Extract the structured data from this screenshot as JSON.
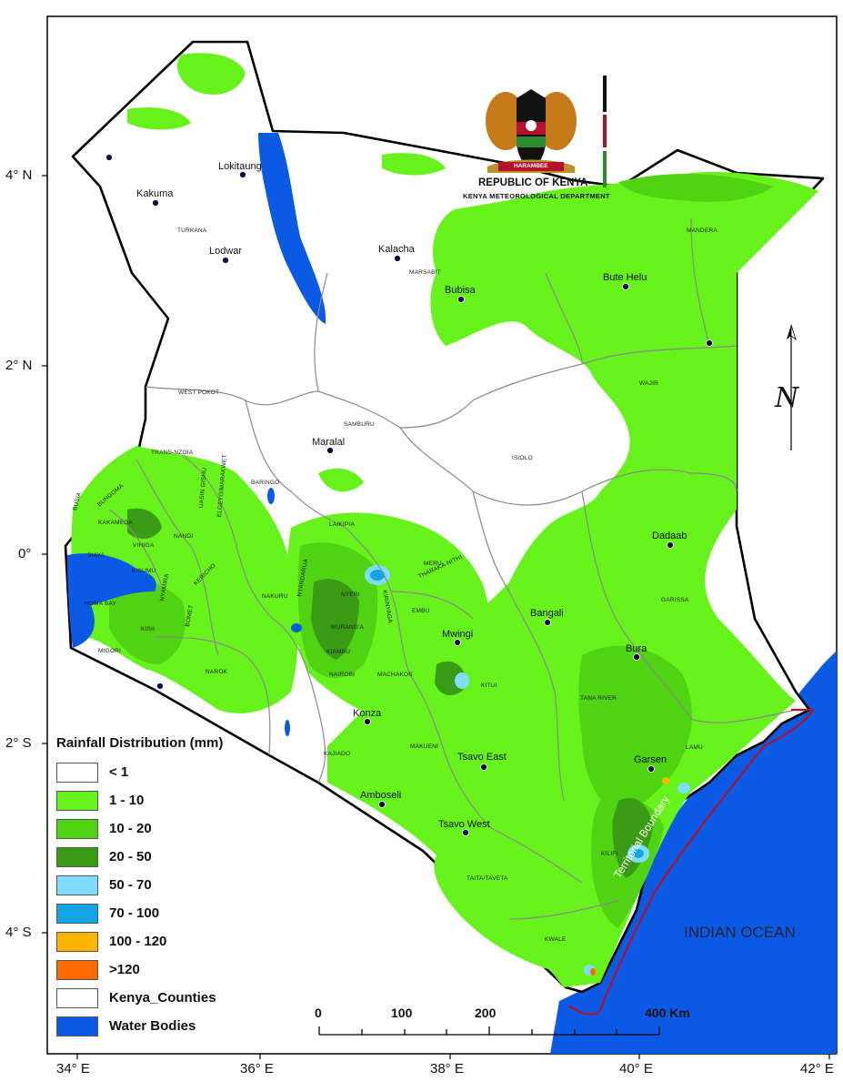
{
  "emblem": {
    "motto": "HARAMBEE",
    "country": "REPUBLIC OF KENYA",
    "department": "KENYA METEOROLOGICAL DEPARTMENT"
  },
  "axes": {
    "lat_labels": [
      "4° N",
      "2° N",
      "0°",
      "2° S",
      "4° S"
    ],
    "lon_labels": [
      "34° E",
      "36° E",
      "38° E",
      "40° E",
      "42° E"
    ]
  },
  "towns": [
    "Lokitaung",
    "Kakuma",
    "Lodwar",
    "Kalacha",
    "Bubisa",
    "Bute Helu",
    "Maralal",
    "Dadaab",
    "Bangali",
    "Mwingi",
    "Bura",
    "Konza",
    "Tsavo East",
    "Garsen",
    "Amboseli",
    "Tsavo West"
  ],
  "counties": [
    "TURKANA",
    "MARSABIT",
    "MANDERA",
    "WAJIR",
    "WEST POKOT",
    "SAMBURU",
    "ISIOLO",
    "TRANS-NZOIA",
    "BUSIA",
    "BUNGOMA",
    "KAKAMEGA",
    "VIHIGA",
    "SIAYA",
    "KISUMU",
    "HOMA BAY",
    "MIGORI",
    "KISII",
    "NYAMIRA",
    "BOMET",
    "KERICHO",
    "NANDI",
    "UASIN GISHU",
    "ELGEYO/MARAKWET",
    "BARINGO",
    "LAIKIPIA",
    "NAKURU",
    "NYANDARUA",
    "NYERI",
    "KIRINYAGA",
    "MURANG'A",
    "KIAMBU",
    "NAIROBI",
    "NAROK",
    "KAJIADO",
    "MACHAKOS",
    "MAKUENI",
    "KITUI",
    "EMBU",
    "MERU",
    "THARAKA-NITHI",
    "GARISSA",
    "TANA RIVER",
    "LAMU",
    "KILIFI",
    "TAITA/TAVETA",
    "KWALE"
  ],
  "legend": {
    "title": "Rainfall Distribution (mm)",
    "items": [
      {
        "label": "< 1",
        "color": "#ffffff"
      },
      {
        "label": "1 - 10",
        "color": "#66f21a"
      },
      {
        "label": "10 - 20",
        "color": "#4fd312"
      },
      {
        "label": "20 - 50",
        "color": "#3a9c14"
      },
      {
        "label": "50 - 70",
        "color": "#80dcff"
      },
      {
        "label": "70 - 100",
        "color": "#14a5e6"
      },
      {
        "label": "100 - 120",
        "color": "#ffb400"
      },
      {
        "label": ">120",
        "color": "#ff6a00"
      },
      {
        "label": "Kenya_Counties",
        "color": "#ffffff"
      },
      {
        "label": "Water Bodies",
        "color": "#0a5ae6"
      }
    ]
  },
  "ocean_label": "INDIAN OCEAN",
  "boundary_label": "Territorial Boundary",
  "north_label": "N",
  "scale": {
    "labels": [
      "0",
      "100",
      "200",
      "400 Km"
    ]
  }
}
